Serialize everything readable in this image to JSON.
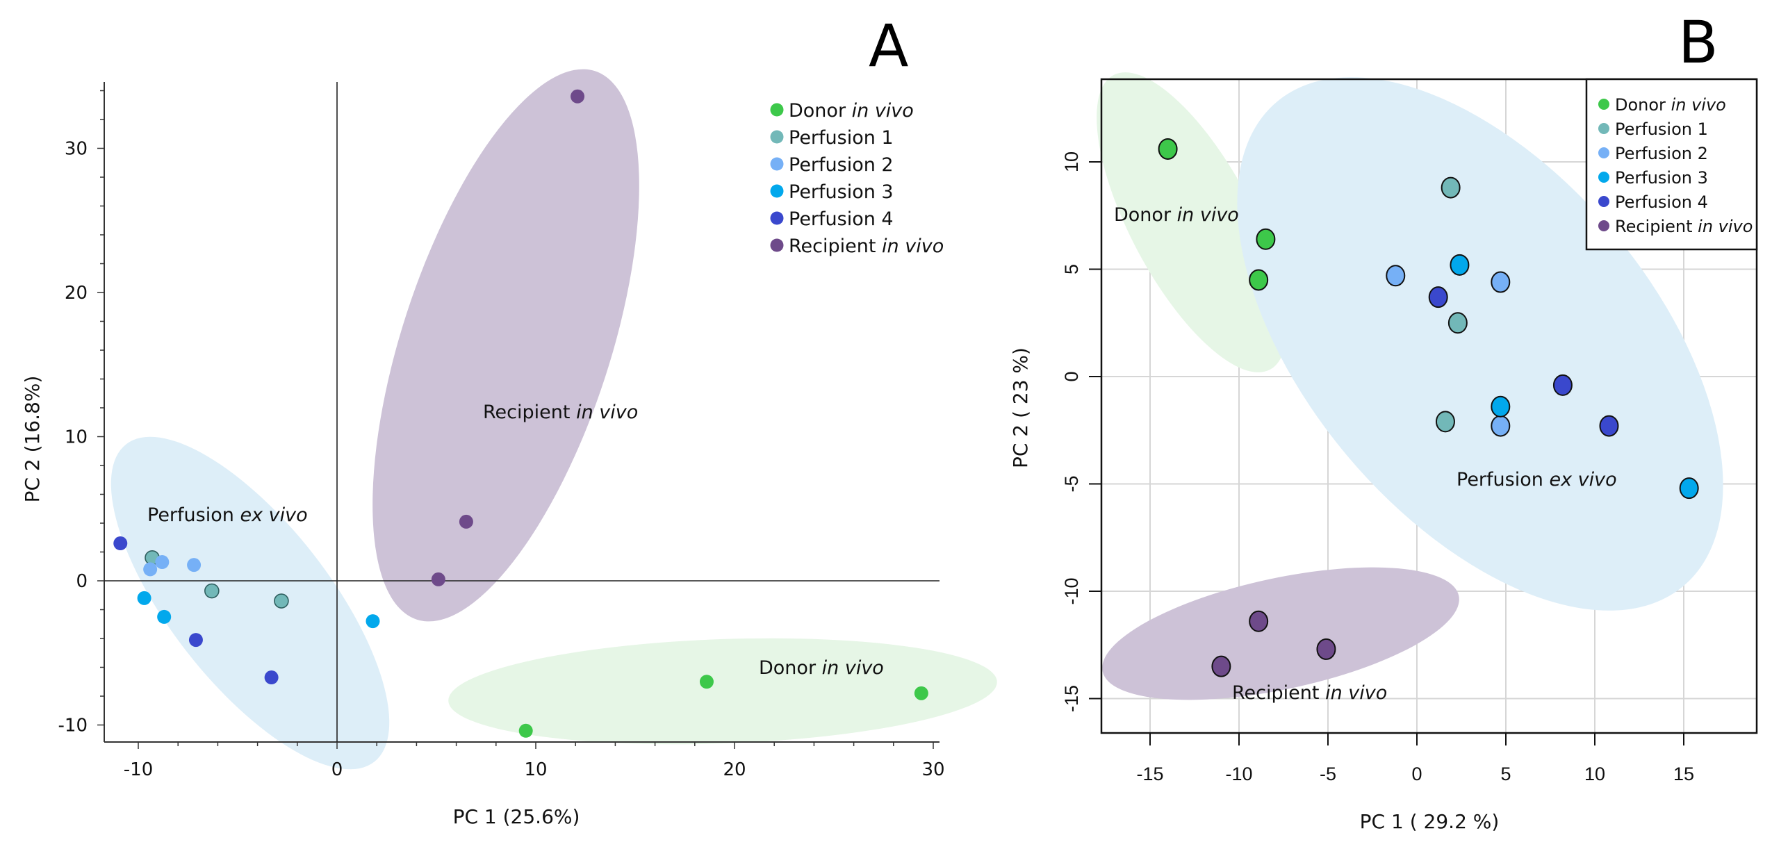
{
  "groups": [
    {
      "key": "donor",
      "label": "Donor",
      "label_italic": "in vivo",
      "color": "#3dc84a"
    },
    {
      "key": "p1",
      "label": "Perfusion 1",
      "label_italic": "",
      "color": "#72b8b8"
    },
    {
      "key": "p2",
      "label": "Perfusion 2",
      "label_italic": "",
      "color": "#76b0f6"
    },
    {
      "key": "p3",
      "label": "Perfusion 3",
      "label_italic": "",
      "color": "#02a8ec"
    },
    {
      "key": "p4",
      "label": "Perfusion 4",
      "label_italic": "",
      "color": "#3a48cd"
    },
    {
      "key": "recipient",
      "label": "Recipient",
      "label_italic": "in vivo",
      "color": "#6e4a8a"
    }
  ],
  "chart_data": [
    {
      "panel": "A",
      "type": "scatter",
      "title": "A",
      "xlabel": "PC 1 (25.6%)",
      "ylabel": "PC 2 (16.8%)",
      "xlim": [
        -11,
        30
      ],
      "ylim": [
        -11,
        34
      ],
      "xticks": [
        -10,
        0,
        10,
        20,
        30
      ],
      "yticks": [
        -10,
        0,
        10,
        20,
        30
      ],
      "grid": false,
      "zero_lines": true,
      "legend": "top-right",
      "annotations": [
        {
          "text": "Perfusion",
          "italic": "ex vivo"
        },
        {
          "text": "Recipient",
          "italic": "in vivo"
        },
        {
          "text": "Donor",
          "italic": "in vivo"
        }
      ],
      "series": [
        {
          "name": "Donor in vivo",
          "group": "donor",
          "points": [
            [
              9.5,
              -10.4
            ],
            [
              18.6,
              -7.0
            ],
            [
              29.4,
              -7.8
            ]
          ]
        },
        {
          "name": "Perfusion 1",
          "group": "p1",
          "points": [
            [
              -9.3,
              1.6
            ],
            [
              -6.3,
              -0.7
            ],
            [
              -2.8,
              -1.4
            ]
          ]
        },
        {
          "name": "Perfusion 2",
          "group": "p2",
          "points": [
            [
              -9.4,
              0.8
            ],
            [
              -8.8,
              1.3
            ],
            [
              -7.2,
              1.1
            ]
          ]
        },
        {
          "name": "Perfusion 3",
          "group": "p3",
          "points": [
            [
              -9.7,
              -1.2
            ],
            [
              -8.7,
              -2.5
            ],
            [
              1.8,
              -2.8
            ]
          ]
        },
        {
          "name": "Perfusion 4",
          "group": "p4",
          "points": [
            [
              -10.9,
              2.6
            ],
            [
              -7.1,
              -4.1
            ],
            [
              -3.3,
              -6.7
            ]
          ]
        },
        {
          "name": "Recipient in vivo",
          "group": "recipient",
          "points": [
            [
              12.1,
              33.6
            ],
            [
              6.5,
              4.1
            ],
            [
              5.1,
              0.1
            ]
          ]
        }
      ]
    },
    {
      "panel": "B",
      "type": "scatter",
      "title": "B",
      "xlabel": "PC 1 ( 29.2 %)",
      "ylabel": "PC 2 ( 23 %)",
      "xlim": [
        -17.8,
        19
      ],
      "ylim": [
        -16.5,
        13.8
      ],
      "xticks": [
        -15,
        -10,
        -5,
        0,
        5,
        10,
        15
      ],
      "yticks": [
        -15,
        -10,
        -5,
        0,
        5,
        10
      ],
      "grid": true,
      "legend": "top-right",
      "annotations": [
        {
          "text": "Donor",
          "italic": "in vivo"
        },
        {
          "text": "Perfusion",
          "italic": "ex vivo"
        },
        {
          "text": "Recipient",
          "italic": "in vivo"
        }
      ],
      "series": [
        {
          "name": "Donor in vivo",
          "group": "donor",
          "points": [
            [
              -14.0,
              10.6
            ],
            [
              -8.5,
              6.4
            ],
            [
              -8.9,
              4.5
            ]
          ]
        },
        {
          "name": "Perfusion 1",
          "group": "p1",
          "points": [
            [
              1.9,
              8.8
            ],
            [
              2.3,
              2.5
            ],
            [
              1.6,
              -2.1
            ]
          ]
        },
        {
          "name": "Perfusion 2",
          "group": "p2",
          "points": [
            [
              -1.2,
              4.7
            ],
            [
              4.7,
              4.4
            ],
            [
              4.7,
              -2.3
            ]
          ]
        },
        {
          "name": "Perfusion 3",
          "group": "p3",
          "points": [
            [
              2.4,
              5.2
            ],
            [
              4.7,
              -1.4
            ],
            [
              15.3,
              -5.2
            ]
          ]
        },
        {
          "name": "Perfusion 4",
          "group": "p4",
          "points": [
            [
              1.2,
              3.7
            ],
            [
              8.2,
              -0.4
            ],
            [
              10.8,
              -2.3
            ]
          ]
        },
        {
          "name": "Recipient in vivo",
          "group": "recipient",
          "points": [
            [
              -8.9,
              -11.4
            ],
            [
              -11.0,
              -13.5
            ],
            [
              -5.1,
              -12.7
            ]
          ]
        }
      ]
    }
  ]
}
